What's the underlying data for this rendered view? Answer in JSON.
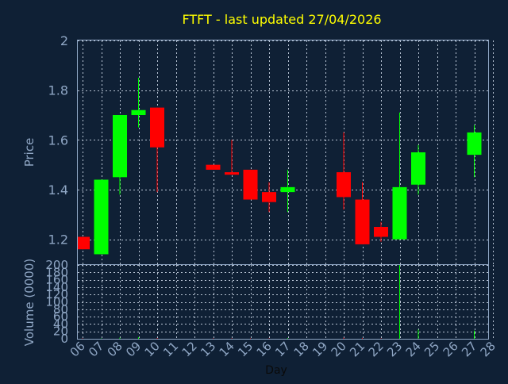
{
  "colors": {
    "background": "#0f2035",
    "plot_border": "#8fa6c4",
    "grid": "#b8c4d4",
    "text": "#8fa6c4",
    "title": "#ffff00",
    "up": "#00ff00",
    "down": "#ff0000"
  },
  "chart_data": [
    {
      "type": "candlestick",
      "title": "FTFT - last updated 27/04/2026",
      "ylabel": "Price",
      "ylim": [
        1.1,
        2.0
      ],
      "yticks": [
        1.2,
        1.4,
        1.6,
        1.8,
        2.0
      ],
      "ytick_labels": [
        "1.2",
        "1.4",
        "1.6",
        "1.8",
        "2"
      ],
      "grid": true,
      "days": [
        "06",
        "07",
        "08",
        "09",
        "10",
        "11",
        "12",
        "13",
        "14",
        "15",
        "16",
        "17",
        "18",
        "19",
        "20",
        "21",
        "22",
        "23",
        "24",
        "25",
        "26",
        "27",
        "28"
      ],
      "candles": [
        {
          "day": "06",
          "open": 1.21,
          "close": 1.16,
          "high": 1.21,
          "low": 1.16
        },
        {
          "day": "07",
          "open": 1.14,
          "close": 1.44,
          "high": 1.44,
          "low": 1.14
        },
        {
          "day": "08",
          "open": 1.45,
          "close": 1.7,
          "high": 1.7,
          "low": 1.38
        },
        {
          "day": "09",
          "open": 1.7,
          "close": 1.72,
          "high": 1.85,
          "low": 1.65
        },
        {
          "day": "10",
          "open": 1.73,
          "close": 1.57,
          "high": 1.73,
          "low": 1.39
        },
        {
          "day": "13",
          "open": 1.5,
          "close": 1.48,
          "high": 1.5,
          "low": 1.48
        },
        {
          "day": "14",
          "open": 1.47,
          "close": 1.46,
          "high": 1.6,
          "low": 1.46
        },
        {
          "day": "15",
          "open": 1.48,
          "close": 1.36,
          "high": 1.48,
          "low": 1.36
        },
        {
          "day": "16",
          "open": 1.39,
          "close": 1.35,
          "high": 1.43,
          "low": 1.31
        },
        {
          "day": "17",
          "open": 1.39,
          "close": 1.41,
          "high": 1.48,
          "low": 1.31
        },
        {
          "day": "20",
          "open": 1.47,
          "close": 1.37,
          "high": 1.63,
          "low": 1.32
        },
        {
          "day": "21",
          "open": 1.36,
          "close": 1.18,
          "high": 1.43,
          "low": 1.18
        },
        {
          "day": "22",
          "open": 1.25,
          "close": 1.21,
          "high": 1.27,
          "low": 1.19
        },
        {
          "day": "23",
          "open": 1.2,
          "close": 1.41,
          "high": 1.71,
          "low": 1.2
        },
        {
          "day": "24",
          "open": 1.42,
          "close": 1.55,
          "high": 1.58,
          "low": 1.38
        },
        {
          "day": "27",
          "open": 1.54,
          "close": 1.63,
          "high": 1.66,
          "low": 1.45
        }
      ]
    },
    {
      "type": "bar",
      "ylabel": "Volume (0000)",
      "xlabel": "Day",
      "ylim": [
        0,
        200
      ],
      "yticks": [
        0,
        20,
        40,
        60,
        80,
        100,
        120,
        140,
        160,
        180,
        200
      ],
      "ytick_labels": [
        "0",
        "20",
        "40",
        "60",
        "80",
        "100",
        "120",
        "140",
        "160",
        "180",
        "200"
      ],
      "grid": true,
      "categories": [
        "06",
        "07",
        "08",
        "09",
        "10",
        "13",
        "14",
        "15",
        "16",
        "17",
        "20",
        "21",
        "22",
        "23",
        "24",
        "27"
      ],
      "values": [
        1,
        1,
        3,
        4,
        2,
        1,
        1,
        1,
        1,
        2,
        3,
        2,
        1,
        200,
        25,
        22
      ],
      "bar_colors": [
        "#ff0000",
        "#00ff00",
        "#00ff00",
        "#00ff00",
        "#ff0000",
        "#ff0000",
        "#ff0000",
        "#ff0000",
        "#ff0000",
        "#00ff00",
        "#ff0000",
        "#ff0000",
        "#ff0000",
        "#00ff00",
        "#00ff00",
        "#00ff00"
      ]
    }
  ]
}
